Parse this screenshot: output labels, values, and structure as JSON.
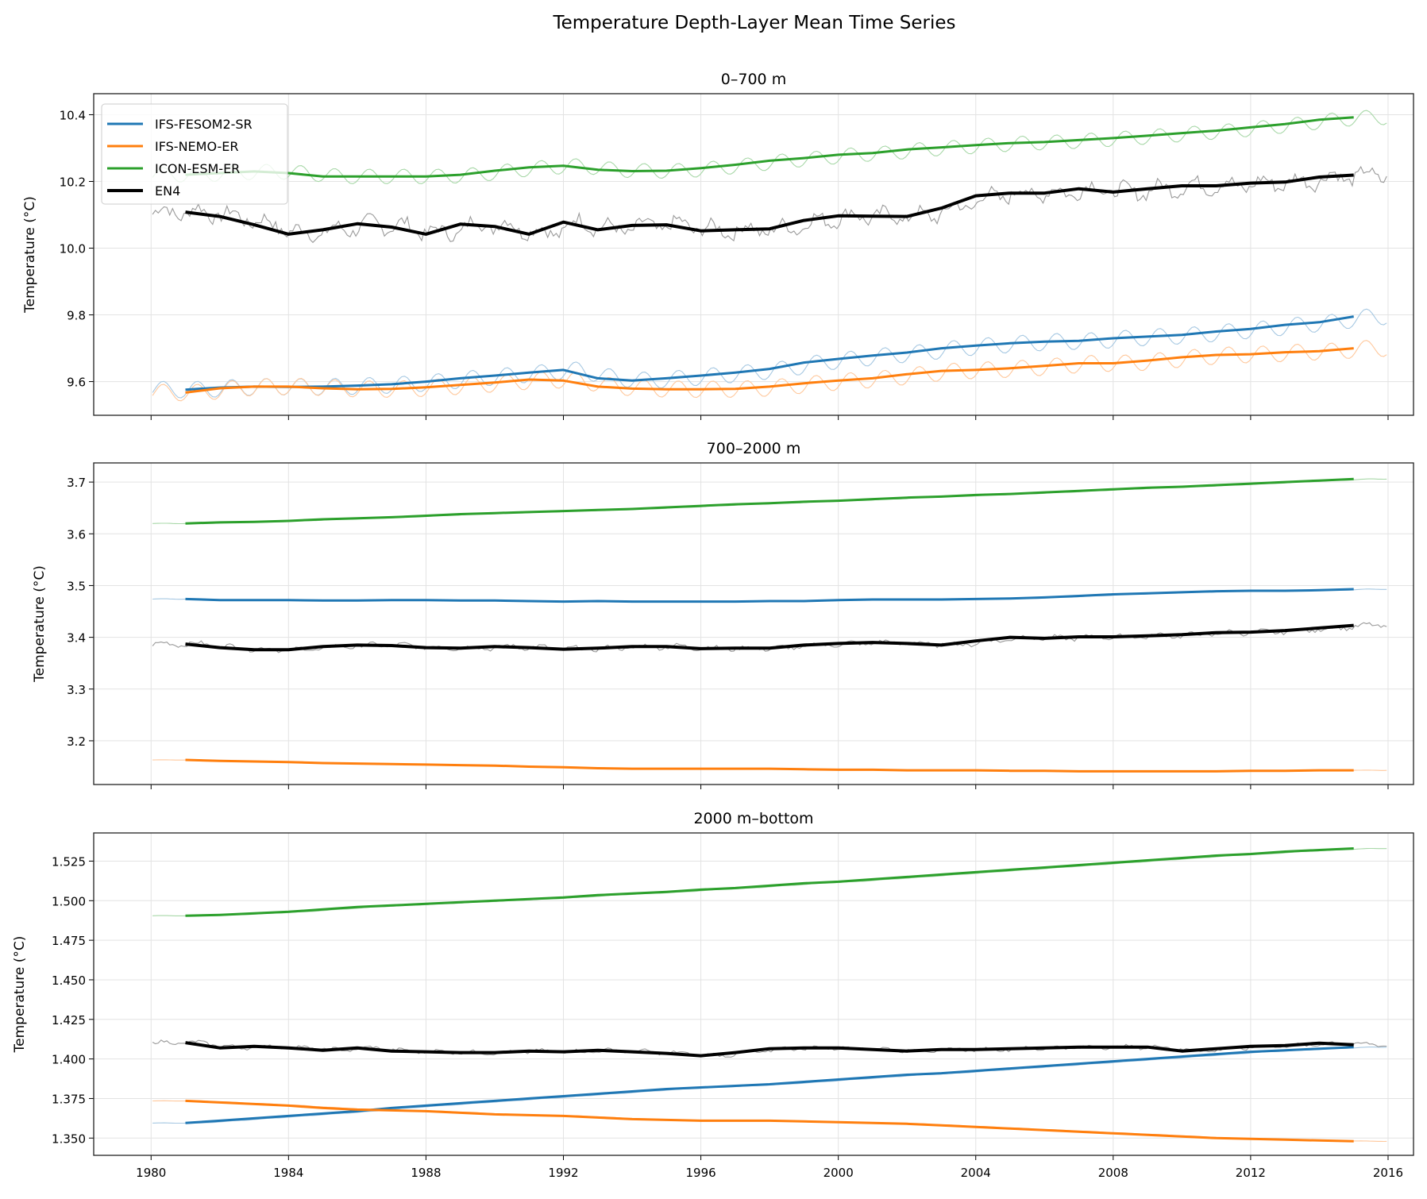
{
  "figure_title": "Temperature Depth-Layer Mean Time Series",
  "colors": {
    "IFS-FESOM2-SR": "#1f77b4",
    "IFS-NEMO-ER": "#ff7f0e",
    "ICON-ESM-ER": "#2ca02c",
    "EN4": "#000000"
  },
  "legend": {
    "placement": "upper-left of top panel",
    "entries": [
      "IFS-FESOM2-SR",
      "IFS-NEMO-ER",
      "ICON-ESM-ER",
      "EN4"
    ]
  },
  "chart_data": [
    {
      "type": "line",
      "title": "0–700 m",
      "xlabel": "",
      "ylabel": "Temperature (°C)",
      "xlim": [
        1978.33,
        2016.74
      ],
      "ylim": [
        9.499,
        10.463
      ],
      "grid": true,
      "xticks": [
        1980,
        1984,
        1988,
        1992,
        1996,
        2000,
        2004,
        2008,
        2012,
        2016
      ],
      "yticks": [
        9.6,
        9.8,
        10.0,
        10.2,
        10.4
      ],
      "ytick_labels": [
        "9.6",
        "9.8",
        "10.0",
        "10.2",
        "10.4"
      ],
      "years": [
        1981,
        1982,
        1983,
        1984,
        1985,
        1986,
        1987,
        1988,
        1989,
        1990,
        1991,
        1992,
        1993,
        1994,
        1995,
        1996,
        1997,
        1998,
        1999,
        2000,
        2001,
        2002,
        2003,
        2004,
        2005,
        2006,
        2007,
        2008,
        2009,
        2010,
        2011,
        2012,
        2013,
        2014,
        2015
      ],
      "series": [
        {
          "name": "IFS-FESOM2-SR",
          "seasonal_amplitude": 0.025,
          "values": [
            9.576,
            9.582,
            9.585,
            9.584,
            9.585,
            9.588,
            9.592,
            9.6,
            9.61,
            9.618,
            9.627,
            9.635,
            9.61,
            9.603,
            9.61,
            9.618,
            9.627,
            9.638,
            9.657,
            9.668,
            9.678,
            9.687,
            9.7,
            9.708,
            9.715,
            9.72,
            9.722,
            9.73,
            9.735,
            9.74,
            9.75,
            9.758,
            9.77,
            9.778,
            9.795
          ]
        },
        {
          "name": "IFS-NEMO-ER",
          "seasonal_amplitude": 0.025,
          "values": [
            9.567,
            9.58,
            9.585,
            9.585,
            9.58,
            9.577,
            9.578,
            9.583,
            9.59,
            9.597,
            9.606,
            9.603,
            9.585,
            9.579,
            9.577,
            9.577,
            9.578,
            9.585,
            9.595,
            9.603,
            9.61,
            9.622,
            9.632,
            9.635,
            9.64,
            9.647,
            9.655,
            9.655,
            9.663,
            9.673,
            9.68,
            9.682,
            9.688,
            9.691,
            9.7
          ]
        },
        {
          "name": "ICON-ESM-ER",
          "seasonal_amplitude": 0.022,
          "values": [
            10.22,
            10.225,
            10.23,
            10.225,
            10.215,
            10.215,
            10.215,
            10.215,
            10.22,
            10.232,
            10.242,
            10.247,
            10.235,
            10.231,
            10.232,
            10.24,
            10.25,
            10.262,
            10.27,
            10.28,
            10.285,
            10.296,
            10.302,
            10.309,
            10.315,
            10.318,
            10.324,
            10.33,
            10.337,
            10.345,
            10.352,
            10.362,
            10.372,
            10.385,
            10.392
          ]
        },
        {
          "name": "EN4",
          "seasonal_amplitude": 0.03,
          "values": [
            10.108,
            10.095,
            10.07,
            10.042,
            10.055,
            10.073,
            10.063,
            10.042,
            10.072,
            10.065,
            10.042,
            10.078,
            10.055,
            10.068,
            10.07,
            10.052,
            10.055,
            10.058,
            10.083,
            10.097,
            10.096,
            10.095,
            10.12,
            10.157,
            10.165,
            10.165,
            10.178,
            10.168,
            10.178,
            10.187,
            10.187,
            10.195,
            10.198,
            10.213,
            10.219
          ]
        }
      ]
    },
    {
      "type": "line",
      "title": "700–2000 m",
      "xlabel": "",
      "ylabel": "Temperature (°C)",
      "xlim": [
        1978.33,
        2016.74
      ],
      "ylim": [
        3.1155,
        3.737
      ],
      "grid": true,
      "xticks": [
        1980,
        1984,
        1988,
        1992,
        1996,
        2000,
        2004,
        2008,
        2012,
        2016
      ],
      "yticks": [
        3.2,
        3.3,
        3.4,
        3.5,
        3.6,
        3.7
      ],
      "ytick_labels": [
        "3.2",
        "3.3",
        "3.4",
        "3.5",
        "3.6",
        "3.7"
      ],
      "years": [
        1981,
        1982,
        1983,
        1984,
        1985,
        1986,
        1987,
        1988,
        1989,
        1990,
        1991,
        1992,
        1993,
        1994,
        1995,
        1996,
        1997,
        1998,
        1999,
        2000,
        2001,
        2002,
        2003,
        2004,
        2005,
        2006,
        2007,
        2008,
        2009,
        2010,
        2011,
        2012,
        2013,
        2014,
        2015
      ],
      "series": [
        {
          "name": "IFS-FESOM2-SR",
          "seasonal_amplitude": 0.0005,
          "values": [
            3.474,
            3.472,
            3.472,
            3.472,
            3.471,
            3.471,
            3.472,
            3.472,
            3.471,
            3.471,
            3.47,
            3.469,
            3.47,
            3.469,
            3.469,
            3.469,
            3.469,
            3.47,
            3.47,
            3.472,
            3.473,
            3.473,
            3.473,
            3.474,
            3.475,
            3.477,
            3.48,
            3.483,
            3.485,
            3.487,
            3.489,
            3.49,
            3.49,
            3.491,
            3.493
          ]
        },
        {
          "name": "IFS-NEMO-ER",
          "seasonal_amplitude": 0.0003,
          "values": [
            3.163,
            3.161,
            3.16,
            3.159,
            3.157,
            3.156,
            3.155,
            3.154,
            3.153,
            3.152,
            3.15,
            3.149,
            3.147,
            3.146,
            3.146,
            3.146,
            3.146,
            3.146,
            3.145,
            3.144,
            3.144,
            3.143,
            3.143,
            3.143,
            3.142,
            3.142,
            3.141,
            3.141,
            3.141,
            3.141,
            3.141,
            3.142,
            3.142,
            3.143,
            3.143
          ]
        },
        {
          "name": "ICON-ESM-ER",
          "seasonal_amplitude": 0.0004,
          "values": [
            3.62,
            3.622,
            3.623,
            3.625,
            3.628,
            3.63,
            3.632,
            3.635,
            3.638,
            3.64,
            3.642,
            3.644,
            3.646,
            3.648,
            3.651,
            3.654,
            3.657,
            3.659,
            3.662,
            3.664,
            3.667,
            3.67,
            3.672,
            3.675,
            3.677,
            3.68,
            3.683,
            3.686,
            3.689,
            3.691,
            3.694,
            3.697,
            3.7,
            3.703,
            3.706
          ]
        },
        {
          "name": "EN4",
          "seasonal_amplitude": 0.006,
          "values": [
            3.387,
            3.38,
            3.376,
            3.376,
            3.382,
            3.385,
            3.384,
            3.38,
            3.379,
            3.382,
            3.38,
            3.377,
            3.379,
            3.382,
            3.382,
            3.378,
            3.379,
            3.379,
            3.385,
            3.388,
            3.39,
            3.388,
            3.385,
            3.393,
            3.4,
            3.398,
            3.401,
            3.401,
            3.403,
            3.405,
            3.409,
            3.41,
            3.413,
            3.418,
            3.423
          ]
        }
      ]
    },
    {
      "type": "line",
      "title": "2000 m–bottom",
      "xlabel": "",
      "ylabel": "Temperature (°C)",
      "xlim": [
        1978.33,
        2016.74
      ],
      "ylim": [
        1.3391,
        1.5428
      ],
      "grid": true,
      "xticks": [
        1980,
        1984,
        1988,
        1992,
        1996,
        2000,
        2004,
        2008,
        2012,
        2016
      ],
      "xtick_labels": [
        "1980",
        "1984",
        "1988",
        "1992",
        "1996",
        "2000",
        "2004",
        "2008",
        "2012",
        "2016"
      ],
      "yticks": [
        1.35,
        1.375,
        1.4,
        1.425,
        1.45,
        1.475,
        1.5,
        1.525
      ],
      "ytick_labels": [
        "1.350",
        "1.375",
        "1.400",
        "1.425",
        "1.450",
        "1.475",
        "1.500",
        "1.525"
      ],
      "years": [
        1981,
        1982,
        1983,
        1984,
        1985,
        1986,
        1987,
        1988,
        1989,
        1990,
        1991,
        1992,
        1993,
        1994,
        1995,
        1996,
        1997,
        1998,
        1999,
        2000,
        2001,
        2002,
        2003,
        2004,
        2005,
        2006,
        2007,
        2008,
        2009,
        2010,
        2011,
        2012,
        2013,
        2014,
        2015
      ],
      "series": [
        {
          "name": "IFS-FESOM2-SR",
          "seasonal_amplitude": 0.0001,
          "values": [
            1.3595,
            1.361,
            1.3625,
            1.364,
            1.3655,
            1.367,
            1.369,
            1.3705,
            1.372,
            1.3735,
            1.375,
            1.3765,
            1.378,
            1.3795,
            1.381,
            1.382,
            1.383,
            1.384,
            1.3855,
            1.387,
            1.3885,
            1.39,
            1.391,
            1.3925,
            1.394,
            1.3955,
            1.397,
            1.3985,
            1.4,
            1.4015,
            1.403,
            1.4045,
            1.4055,
            1.4065,
            1.4075
          ]
        },
        {
          "name": "IFS-NEMO-ER",
          "seasonal_amplitude": 0.0001,
          "values": [
            1.3735,
            1.3725,
            1.3715,
            1.3705,
            1.369,
            1.368,
            1.3675,
            1.367,
            1.366,
            1.365,
            1.3645,
            1.364,
            1.363,
            1.362,
            1.3615,
            1.361,
            1.361,
            1.361,
            1.3605,
            1.36,
            1.3595,
            1.359,
            1.358,
            1.357,
            1.356,
            1.355,
            1.354,
            1.353,
            1.352,
            1.351,
            1.35,
            1.3495,
            1.349,
            1.3485,
            1.348
          ]
        },
        {
          "name": "ICON-ESM-ER",
          "seasonal_amplitude": 0.0001,
          "values": [
            1.4905,
            1.491,
            1.492,
            1.493,
            1.4945,
            1.496,
            1.497,
            1.498,
            1.499,
            1.5,
            1.501,
            1.502,
            1.5035,
            1.5045,
            1.5055,
            1.507,
            1.508,
            1.5095,
            1.511,
            1.512,
            1.5135,
            1.515,
            1.5165,
            1.518,
            1.5195,
            1.521,
            1.5225,
            1.524,
            1.5255,
            1.527,
            1.5285,
            1.5295,
            1.531,
            1.532,
            1.533
          ]
        },
        {
          "name": "EN4",
          "seasonal_amplitude": 0.0015,
          "values": [
            1.4103,
            1.407,
            1.408,
            1.407,
            1.4055,
            1.407,
            1.405,
            1.4045,
            1.404,
            1.404,
            1.405,
            1.4045,
            1.4055,
            1.4045,
            1.4035,
            1.402,
            1.404,
            1.4065,
            1.407,
            1.407,
            1.406,
            1.405,
            1.406,
            1.406,
            1.4065,
            1.407,
            1.4075,
            1.4075,
            1.4075,
            1.405,
            1.4065,
            1.408,
            1.4085,
            1.41,
            1.409
          ]
        }
      ]
    }
  ]
}
